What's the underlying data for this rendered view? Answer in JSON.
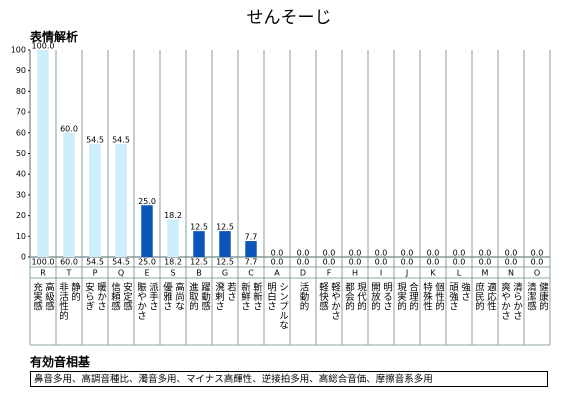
{
  "chart_data": {
    "type": "bar",
    "title": "せんそーじ",
    "subtitle": "表情解析",
    "categories": [
      "R",
      "T",
      "P",
      "Q",
      "E",
      "S",
      "B",
      "G",
      "C",
      "A",
      "D",
      "F",
      "H",
      "I",
      "J",
      "K",
      "L",
      "M",
      "N",
      "O"
    ],
    "category_labels": [
      [
        "充実感",
        "高級感"
      ],
      [
        "非活性的",
        "静的"
      ],
      [
        "安らぎ",
        "暖かさ"
      ],
      [
        "信頼感",
        "安定感"
      ],
      [
        "賑やかさ",
        "派手さ"
      ],
      [
        "優雅さ",
        "高尚な"
      ],
      [
        "進取的",
        "躍動感"
      ],
      [
        "溌剌さ",
        "若さ"
      ],
      [
        "新鮮さ",
        "斬新さ"
      ],
      [
        "明白さ",
        "シンプルな"
      ],
      [
        "活動的"
      ],
      [
        "軽快感",
        "軽やかさ"
      ],
      [
        "都会的",
        "現代的"
      ],
      [
        "開放的",
        "明るさ"
      ],
      [
        "現実的",
        "合理的"
      ],
      [
        "特殊性",
        "個性的"
      ],
      [
        "頑強さ",
        "強さ"
      ],
      [
        "庶民的",
        "適応性"
      ],
      [
        "爽やかさ",
        "清らかさ"
      ],
      [
        "清潔感",
        "健康的"
      ]
    ],
    "values": [
      100,
      60,
      54.5,
      54.5,
      25,
      18.2,
      12.5,
      12.5,
      7.7,
      0,
      0,
      0,
      0,
      0,
      0,
      0,
      0,
      0,
      0,
      0
    ],
    "value_labels": [
      "100.0",
      "60.0",
      "54.5",
      "54.5",
      "25.0",
      "18.2",
      "12.5",
      "12.5",
      "7.7",
      "0.0",
      "0.0",
      "0.0",
      "0.0",
      "0.0",
      "0.0",
      "0.0",
      "0.0",
      "0.0",
      "0.0",
      "0.0"
    ],
    "colors": [
      "#cdeefb",
      "#cdeefb",
      "#cdeefb",
      "#cdeefb",
      "#0a55b8",
      "#cdeefb",
      "#0a55b8",
      "#0a55b8",
      "#0a55b8",
      "#0a55b8",
      "#0a55b8",
      "#0a55b8",
      "#0a55b8",
      "#0a55b8",
      "#0a55b8",
      "#0a55b8",
      "#0a55b8",
      "#0a55b8",
      "#0a55b8",
      "#0a55b8"
    ],
    "ylim": [
      0,
      100
    ],
    "yticks": [
      0,
      10,
      20,
      30,
      40,
      50,
      60,
      70,
      80,
      90,
      100
    ],
    "footer_title": "有効音相基",
    "footer_text": "鼻音多用、高調音種比、濁音多用、マイナス高輝性、逆接拍多用、高総合音価、摩擦音系多用"
  }
}
